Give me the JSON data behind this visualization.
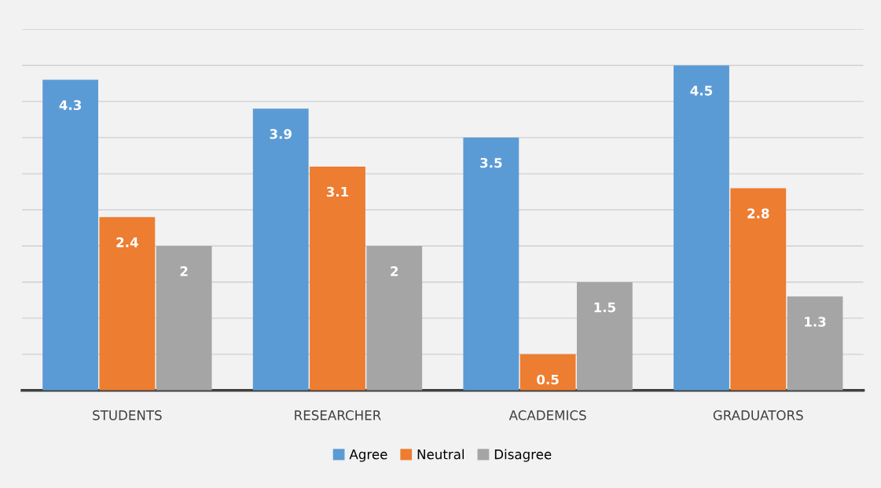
{
  "chart_data": {
    "type": "bar",
    "categories": [
      "STUDENTS",
      "RESEARCHER",
      "ACADEMICS",
      "GRADUATORS"
    ],
    "series": [
      {
        "name": "Agree",
        "color": "#5b9bd5",
        "values": [
          4.3,
          3.9,
          3.5,
          4.5
        ]
      },
      {
        "name": "Neutral",
        "color": "#ed7d31",
        "values": [
          2.4,
          3.1,
          0.5,
          2.8
        ]
      },
      {
        "name": "Disagree",
        "color": "#a5a5a5",
        "values": [
          2,
          2,
          1.5,
          1.3
        ]
      }
    ],
    "ylim": [
      0,
      5
    ],
    "yticks": [
      {
        "value": 0,
        "label": null
      },
      {
        "value": 0.5,
        "label": null
      },
      {
        "value": 1,
        "label": null
      },
      {
        "value": 1.5,
        "label": null
      },
      {
        "value": 2,
        "label": null
      },
      {
        "value": 2.5,
        "label": null
      },
      {
        "value": 3,
        "label": null
      },
      {
        "value": 3.5,
        "label": null
      },
      {
        "value": 4,
        "label": null
      },
      {
        "value": 4.5,
        "label": null
      },
      {
        "value": 5,
        "label": null
      }
    ],
    "tick_labels": "x",
    "grid": "y",
    "legend": "bottom",
    "data_labels": true
  }
}
